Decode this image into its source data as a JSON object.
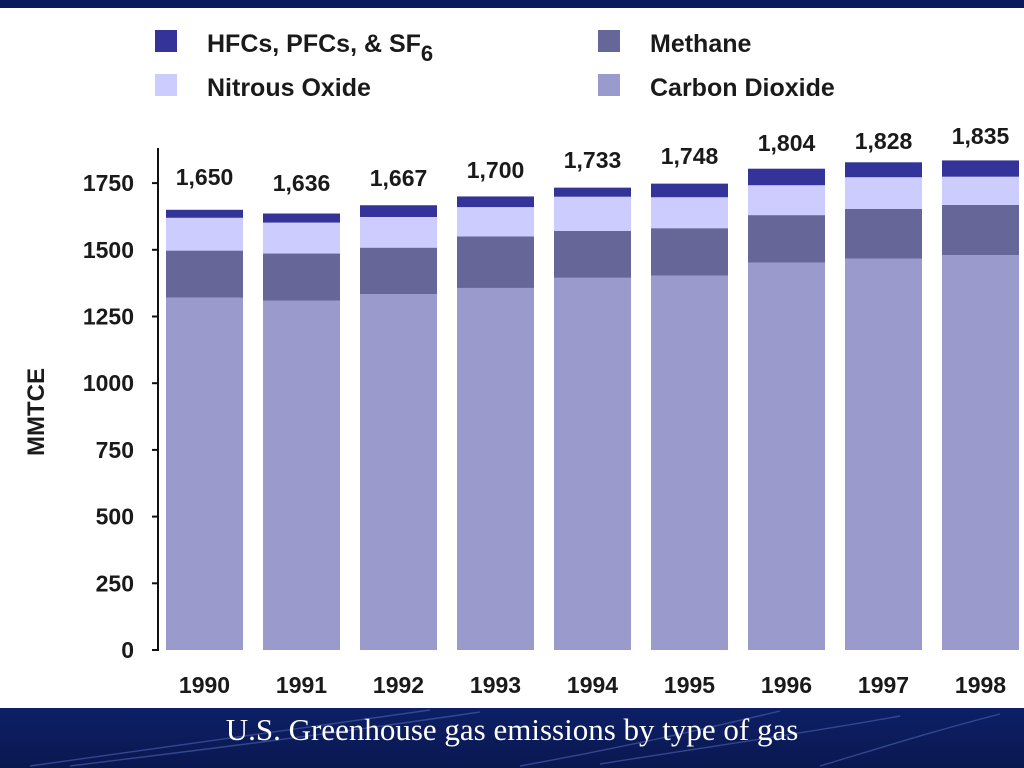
{
  "caption": "U.S. Greenhouse gas emissions by type of gas",
  "chart_data": {
    "type": "bar",
    "stacked": true,
    "title": "",
    "xlabel": "",
    "ylabel": "MMTCE",
    "ylim": [
      0,
      1900
    ],
    "yticks": [
      0,
      250,
      500,
      750,
      1000,
      1250,
      1500,
      1750
    ],
    "ytick_labels": [
      "0",
      "250",
      "500",
      "750",
      "1000",
      "1250",
      "1500",
      "1750"
    ],
    "grid": false,
    "legend_position": "top",
    "categories": [
      "1990",
      "1991",
      "1992",
      "1993",
      "1994",
      "1995",
      "1996",
      "1997",
      "1998"
    ],
    "totals": [
      "1,650",
      "1,636",
      "1,667",
      "1,700",
      "1,733",
      "1,748",
      "1,804",
      "1,828",
      "1,835"
    ],
    "series": [
      {
        "name": "Carbon Dioxide",
        "color": "#9a9acc",
        "values": [
          1321,
          1310,
          1334,
          1357,
          1395,
          1403,
          1452,
          1467,
          1480
        ]
      },
      {
        "name": "Methane",
        "color": "#666699",
        "values": [
          176,
          176,
          174,
          193,
          176,
          178,
          178,
          186,
          188
        ]
      },
      {
        "name": "Nitrous Oxide",
        "color": "#ccccff",
        "values": [
          123,
          116,
          115,
          110,
          128,
          116,
          112,
          119,
          106
        ]
      },
      {
        "name": "HFCs, PFCs, & SF",
        "name_subscript": "6",
        "color": "#333399",
        "values": [
          30,
          34,
          44,
          40,
          34,
          51,
          62,
          56,
          61
        ]
      }
    ],
    "legend": [
      {
        "series": 3,
        "label": "HFCs, PFCs, & SF",
        "subscript": "6"
      },
      {
        "series": 1,
        "label": "Methane",
        "subscript": ""
      },
      {
        "series": 2,
        "label": "Nitrous Oxide",
        "subscript": ""
      },
      {
        "series": 0,
        "label": "Carbon Dioxide",
        "subscript": ""
      }
    ]
  }
}
